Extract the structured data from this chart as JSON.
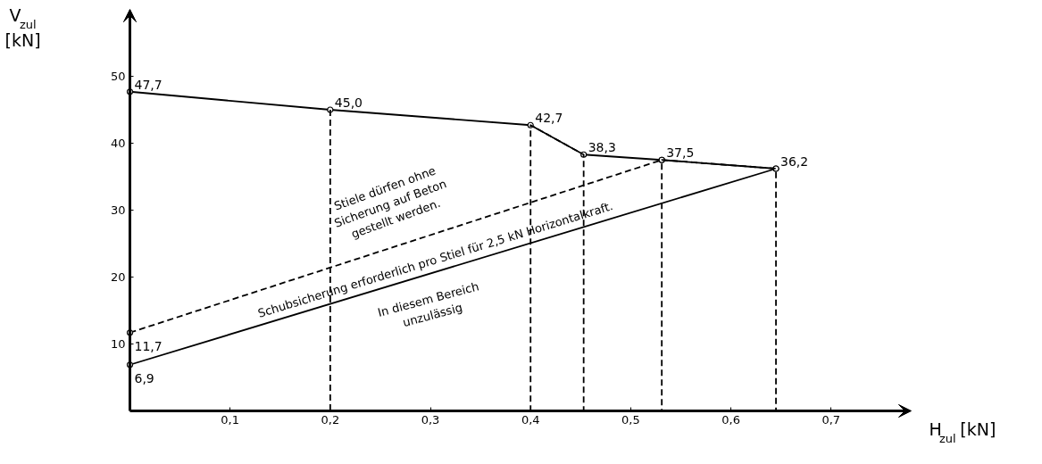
{
  "chart_data": {
    "type": "line",
    "xlabel": "H$_{zul}$ [kN]",
    "ylabel": "V$_{zul}$ [kN]",
    "xlim": [
      0,
      0.78
    ],
    "ylim": [
      0,
      60
    ],
    "xticks": [
      {
        "value": 0.1,
        "label": "0,1"
      },
      {
        "value": 0.2,
        "label": "0,2"
      },
      {
        "value": 0.3,
        "label": "0,3"
      },
      {
        "value": 0.4,
        "label": "0,4"
      },
      {
        "value": 0.5,
        "label": "0,5"
      },
      {
        "value": 0.6,
        "label": "0,6"
      },
      {
        "value": 0.7,
        "label": "0,7"
      }
    ],
    "yticks": [
      10,
      20,
      30,
      40,
      50
    ],
    "series": [
      {
        "color": "#000000",
        "x": [
          0,
          0.2,
          0.4,
          0.453,
          0.531,
          0.645
        ],
        "values": [
          47.7,
          45.0,
          42.7,
          38.3,
          37.5,
          36.2
        ],
        "value_labels": [
          "47,7",
          "45,0",
          "42,7",
          "38,3",
          "37,5",
          "36,2"
        ],
        "marker": "circle",
        "line_style": "solid"
      },
      {
        "color": "#000000",
        "x": [
          0,
          0.645
        ],
        "values": [
          6.9,
          36.2
        ],
        "value_labels": [
          "6,9",
          null
        ],
        "marker": "circle",
        "line_style": "solid"
      },
      {
        "color": "#000000",
        "x": [
          0,
          0.531
        ],
        "values": [
          11.7,
          37.5
        ],
        "value_labels": [
          "11,7",
          null
        ],
        "marker": "circle",
        "line_style": "dashed"
      },
      {
        "color": "#000000",
        "x": [
          0.2,
          0.2,
          0.4,
          0.4,
          0.453,
          0.453,
          0.531,
          0.531,
          0.645,
          0.645
        ],
        "values": [
          45.0,
          0,
          0,
          42.7,
          38.3,
          0,
          0,
          37.5,
          36.2,
          0
        ],
        "marker": "none",
        "line_style": "dashed"
      }
    ],
    "annotations": [
      "Stiele dürfen ohne\nSicherung auf Beton\ngestellt werden.",
      "Schubsicherung erforderlich pro Stiel für 2,5 kN Horizontalkraft.",
      "In diesem Bereich\nunzulässig"
    ]
  }
}
